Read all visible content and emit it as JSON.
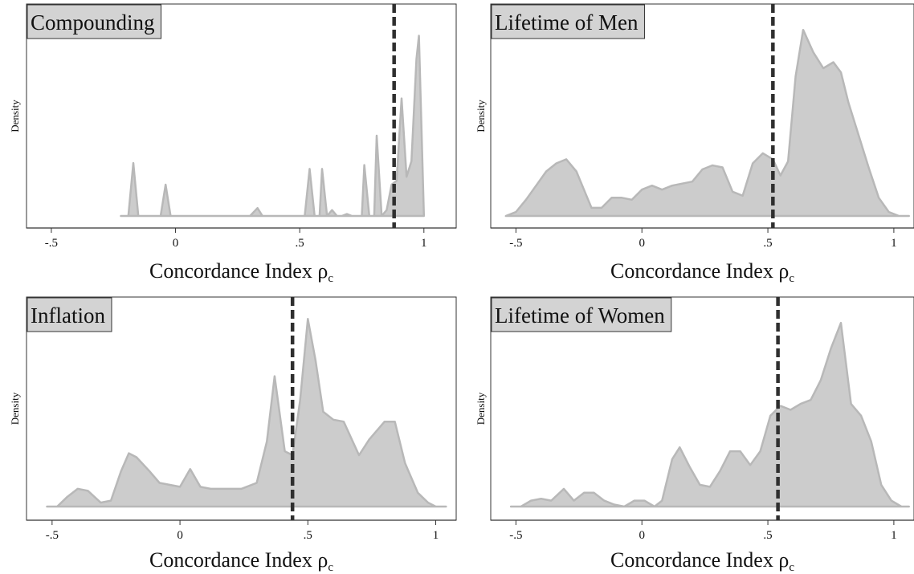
{
  "colors": {
    "fill": "#cccccc",
    "outline": "#b8b8b8",
    "reference_line": "#2f2f2f",
    "title_box": "#d3d3d3",
    "axis": "#333333"
  },
  "chart_data": [
    {
      "type": "area",
      "title": "Compounding",
      "xlabel": "Concordance Index ρ",
      "xlabel_sub": "c",
      "ylabel": "Density",
      "xlim": [
        -0.6,
        1.13
      ],
      "ylim": [
        0,
        1.0
      ],
      "xticks": [
        -0.5,
        0,
        0.5,
        1
      ],
      "xtick_labels": [
        "-.5",
        "0",
        ".5",
        "1"
      ],
      "reference_line_x": 0.88,
      "x": [
        -0.22,
        -0.19,
        -0.17,
        -0.15,
        -0.13,
        -0.06,
        -0.04,
        -0.02,
        0.0,
        0.3,
        0.33,
        0.35,
        0.5,
        0.52,
        0.54,
        0.56,
        0.58,
        0.59,
        0.61,
        0.63,
        0.65,
        0.67,
        0.69,
        0.71,
        0.73,
        0.75,
        0.76,
        0.78,
        0.8,
        0.81,
        0.83,
        0.85,
        0.87,
        0.89,
        0.91,
        0.93,
        0.95,
        0.97,
        0.98,
        1.0
      ],
      "y": [
        0.0,
        0.0,
        0.27,
        0.0,
        0.0,
        0.0,
        0.16,
        0.0,
        0.0,
        0.0,
        0.04,
        0.0,
        0.0,
        0.0,
        0.24,
        0.0,
        0.0,
        0.24,
        0.0,
        0.03,
        0.0,
        0.0,
        0.01,
        0.0,
        0.0,
        0.0,
        0.26,
        0.0,
        0.0,
        0.41,
        0.0,
        0.03,
        0.16,
        0.18,
        0.6,
        0.2,
        0.28,
        0.8,
        0.92,
        0.0
      ]
    },
    {
      "type": "area",
      "title": "Lifetime of Men",
      "xlabel": "Concordance Index ρ",
      "xlabel_sub": "c",
      "ylabel": "Density",
      "xlim": [
        -0.6,
        1.08
      ],
      "ylim": [
        0,
        1.0
      ],
      "xticks": [
        -0.5,
        0,
        0.5,
        1
      ],
      "xtick_labels": [
        "-.5",
        "0",
        ".5",
        "1"
      ],
      "reference_line_x": 0.52,
      "x": [
        -0.54,
        -0.5,
        -0.46,
        -0.42,
        -0.38,
        -0.34,
        -0.3,
        -0.26,
        -0.22,
        -0.2,
        -0.16,
        -0.12,
        -0.08,
        -0.04,
        0.0,
        0.04,
        0.08,
        0.12,
        0.16,
        0.2,
        0.24,
        0.28,
        0.32,
        0.36,
        0.4,
        0.44,
        0.48,
        0.52,
        0.55,
        0.58,
        0.61,
        0.64,
        0.68,
        0.72,
        0.76,
        0.79,
        0.82,
        0.86,
        0.9,
        0.94,
        0.98,
        1.02,
        1.06
      ],
      "y": [
        0.0,
        0.02,
        0.08,
        0.15,
        0.22,
        0.26,
        0.28,
        0.22,
        0.1,
        0.04,
        0.04,
        0.09,
        0.09,
        0.08,
        0.13,
        0.15,
        0.13,
        0.15,
        0.16,
        0.17,
        0.23,
        0.25,
        0.24,
        0.12,
        0.1,
        0.26,
        0.31,
        0.28,
        0.2,
        0.27,
        0.69,
        0.92,
        0.81,
        0.73,
        0.76,
        0.71,
        0.56,
        0.4,
        0.24,
        0.09,
        0.02,
        0.0,
        0.0
      ]
    },
    {
      "type": "area",
      "title": "Inflation",
      "xlabel": "Concordance Index ρ",
      "xlabel_sub": "c",
      "ylabel": "Density",
      "xlim": [
        -0.6,
        1.08
      ],
      "ylim": [
        0,
        1.0
      ],
      "xticks": [
        -0.5,
        0,
        0.5,
        1
      ],
      "xtick_labels": [
        "-.5",
        "0",
        ".5",
        "1"
      ],
      "reference_line_x": 0.44,
      "x": [
        -0.52,
        -0.48,
        -0.44,
        -0.4,
        -0.36,
        -0.31,
        -0.27,
        -0.23,
        -0.2,
        -0.17,
        -0.12,
        -0.08,
        0.0,
        0.04,
        0.08,
        0.12,
        0.24,
        0.3,
        0.34,
        0.37,
        0.41,
        0.44,
        0.47,
        0.5,
        0.53,
        0.56,
        0.6,
        0.64,
        0.7,
        0.74,
        0.8,
        0.84,
        0.88,
        0.93,
        0.97,
        1.0,
        1.04
      ],
      "y": [
        0.0,
        0.0,
        0.05,
        0.09,
        0.08,
        0.02,
        0.03,
        0.18,
        0.27,
        0.25,
        0.18,
        0.12,
        0.1,
        0.19,
        0.1,
        0.09,
        0.09,
        0.12,
        0.33,
        0.66,
        0.28,
        0.26,
        0.54,
        0.95,
        0.74,
        0.48,
        0.44,
        0.43,
        0.26,
        0.34,
        0.43,
        0.43,
        0.22,
        0.07,
        0.02,
        0.0,
        0.0
      ]
    },
    {
      "type": "area",
      "title": "Lifetime of Women",
      "xlabel": "Concordance Index ρ",
      "xlabel_sub": "c",
      "ylabel": "Density",
      "xlim": [
        -0.6,
        1.08
      ],
      "ylim": [
        0,
        1.0
      ],
      "xticks": [
        -0.5,
        0,
        0.5,
        1
      ],
      "xtick_labels": [
        "-.5",
        "0",
        ".5",
        "1"
      ],
      "reference_line_x": 0.54,
      "x": [
        -0.52,
        -0.48,
        -0.44,
        -0.4,
        -0.36,
        -0.31,
        -0.27,
        -0.23,
        -0.19,
        -0.15,
        -0.11,
        -0.07,
        -0.03,
        0.01,
        0.05,
        0.08,
        0.12,
        0.15,
        0.19,
        0.23,
        0.27,
        0.31,
        0.35,
        0.39,
        0.43,
        0.47,
        0.51,
        0.55,
        0.59,
        0.63,
        0.67,
        0.71,
        0.75,
        0.79,
        0.83,
        0.87,
        0.91,
        0.95,
        0.99,
        1.03,
        1.06
      ],
      "y": [
        0.0,
        0.0,
        0.03,
        0.04,
        0.03,
        0.09,
        0.03,
        0.07,
        0.07,
        0.03,
        0.01,
        0.0,
        0.03,
        0.03,
        0.0,
        0.03,
        0.24,
        0.3,
        0.2,
        0.11,
        0.1,
        0.18,
        0.28,
        0.28,
        0.21,
        0.28,
        0.46,
        0.51,
        0.49,
        0.52,
        0.54,
        0.64,
        0.8,
        0.93,
        0.52,
        0.46,
        0.33,
        0.11,
        0.03,
        0.0,
        0.0
      ]
    }
  ]
}
